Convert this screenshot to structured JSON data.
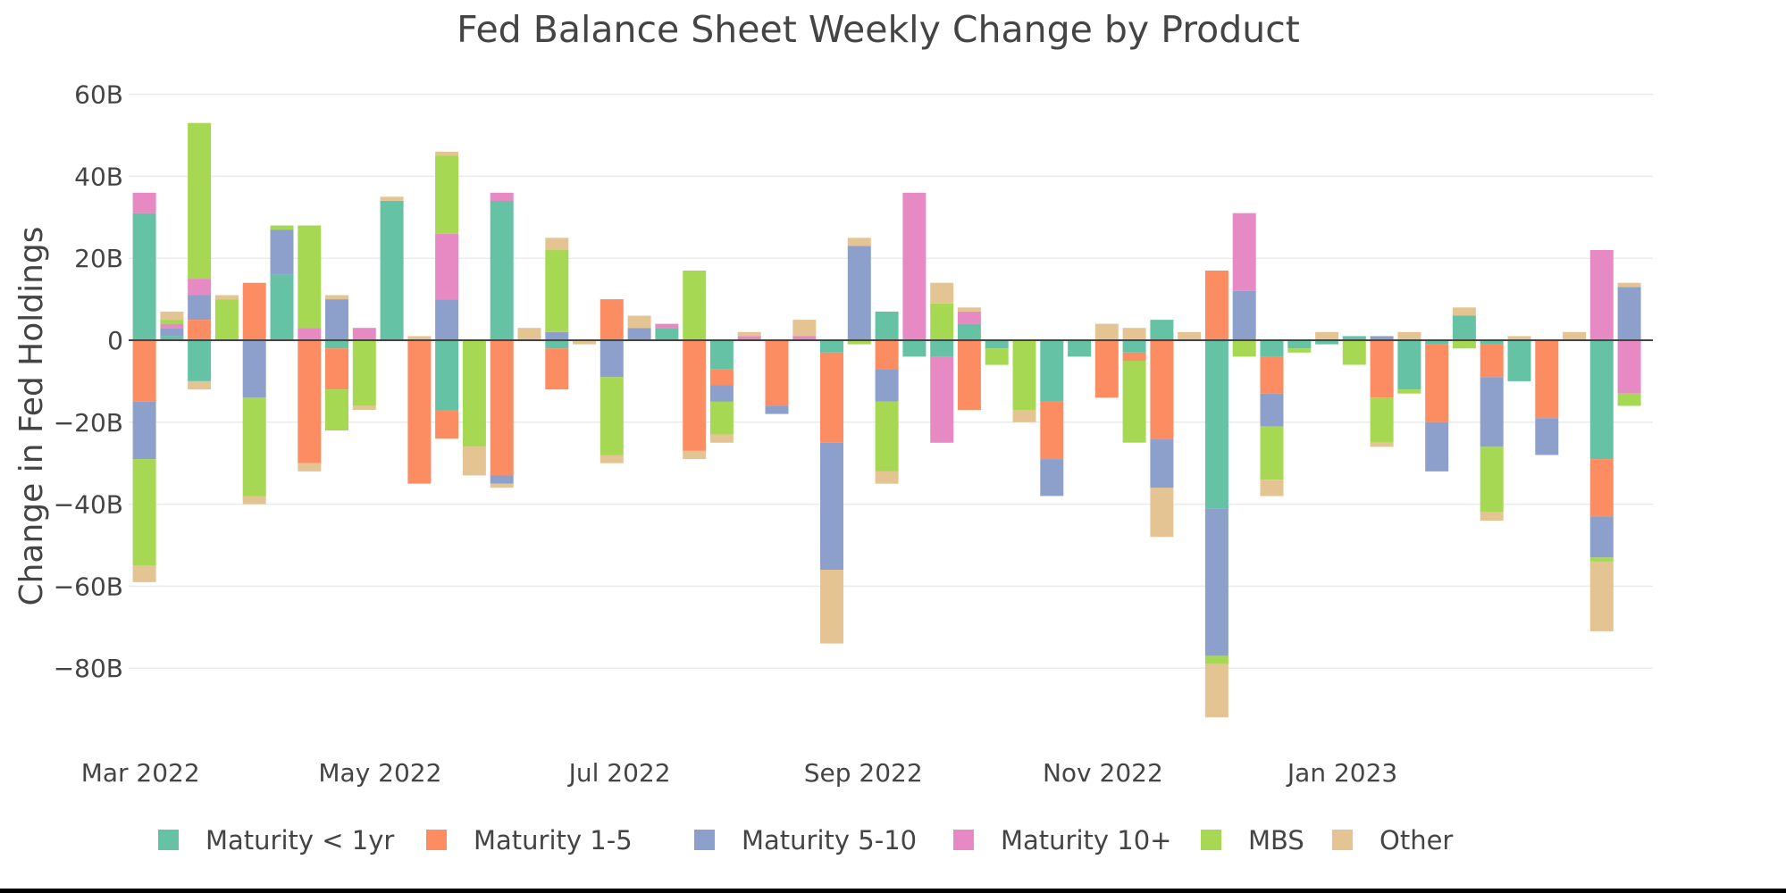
{
  "chart_data": {
    "type": "bar",
    "barmode": "relative",
    "title": "Fed Balance Sheet Weekly Change by Product",
    "ylabel": "Change in Fed Holdings",
    "xlabel": "",
    "ylim": [
      -97,
      64
    ],
    "yticks": [
      60,
      40,
      20,
      0,
      -20,
      -40,
      -60,
      -80
    ],
    "ytick_labels": [
      "60B",
      "40B",
      "20B",
      "0",
      "−20B",
      "−40B",
      "−60B",
      "−80B"
    ],
    "xlim": [
      "2022-02-26",
      "2023-03-21"
    ],
    "xticks": [
      "2022-03-01",
      "2022-05-01",
      "2022-07-01",
      "2022-09-01",
      "2022-11-01",
      "2023-01-01"
    ],
    "xtick_labels": [
      "Mar 2022",
      "May 2022",
      "Jul 2022",
      "Sep 2022",
      "Nov 2022",
      "Jan 2023"
    ],
    "grid": true,
    "legend_position": "bottom",
    "dates": [
      "2022-03-02",
      "2022-03-09",
      "2022-03-16",
      "2022-03-23",
      "2022-03-30",
      "2022-04-06",
      "2022-04-13",
      "2022-04-20",
      "2022-04-27",
      "2022-05-04",
      "2022-05-11",
      "2022-05-18",
      "2022-05-25",
      "2022-06-01",
      "2022-06-08",
      "2022-06-15",
      "2022-06-22",
      "2022-06-29",
      "2022-07-06",
      "2022-07-13",
      "2022-07-20",
      "2022-07-27",
      "2022-08-03",
      "2022-08-10",
      "2022-08-17",
      "2022-08-24",
      "2022-08-31",
      "2022-09-07",
      "2022-09-14",
      "2022-09-21",
      "2022-09-28",
      "2022-10-05",
      "2022-10-12",
      "2022-10-19",
      "2022-10-26",
      "2022-11-02",
      "2022-11-09",
      "2022-11-16",
      "2022-11-23",
      "2022-11-30",
      "2022-12-07",
      "2022-12-14",
      "2022-12-21",
      "2022-12-28",
      "2023-01-04",
      "2023-01-11",
      "2023-01-18",
      "2023-01-25",
      "2023-02-01",
      "2023-02-08",
      "2023-02-15",
      "2023-02-22",
      "2023-03-01",
      "2023-03-08",
      "2023-03-15"
    ],
    "series": [
      {
        "name": "Maturity < 1yr",
        "color": "#66c2a5",
        "values": [
          31,
          1,
          -10,
          0,
          0,
          16,
          0,
          -2,
          0,
          34,
          0,
          -17,
          0,
          34,
          0,
          -2,
          0,
          0,
          0,
          3,
          0,
          -7,
          0,
          0,
          0,
          -3,
          0,
          7,
          -4,
          -4,
          4,
          -2,
          0,
          -15,
          -4,
          0,
          -3,
          5,
          0,
          -41,
          0,
          -4,
          -2,
          -1,
          1,
          0,
          -12,
          -1,
          6,
          -1,
          -10,
          0,
          0,
          -29,
          0
        ]
      },
      {
        "name": "Maturity 1-5",
        "color": "#fc8d62",
        "values": [
          -15,
          0,
          5,
          0,
          14,
          0,
          -30,
          -10,
          0,
          0,
          -35,
          -7,
          0,
          -33,
          0,
          -10,
          0,
          10,
          0,
          0,
          -27,
          -4,
          0,
          -16,
          0,
          -22,
          0,
          -7,
          0,
          0,
          -17,
          0,
          0,
          -14,
          0,
          -14,
          -2,
          -24,
          0,
          17,
          0,
          -9,
          0,
          0,
          0,
          -14,
          0,
          -19,
          0,
          -8,
          0,
          -19,
          0,
          -14,
          0
        ]
      },
      {
        "name": "Maturity 5-10",
        "color": "#8da0cb",
        "values": [
          -14,
          2,
          6,
          0,
          -14,
          11,
          0,
          10,
          0,
          0,
          0,
          10,
          0,
          -2,
          0,
          2,
          0,
          -9,
          3,
          0,
          0,
          -4,
          0,
          -2,
          0,
          -31,
          23,
          -8,
          0,
          0,
          0,
          0,
          0,
          -9,
          0,
          0,
          0,
          -12,
          0,
          -36,
          12,
          -8,
          0,
          0,
          0,
          1,
          0,
          -12,
          0,
          -17,
          0,
          -9,
          0,
          -10,
          13
        ]
      },
      {
        "name": "Maturity 10+",
        "color": "#e78ac3",
        "values": [
          5,
          1,
          4,
          0,
          0,
          0,
          3,
          0,
          3,
          0,
          0,
          16,
          0,
          2,
          0,
          0,
          0,
          0,
          0,
          1,
          0,
          0,
          1,
          0,
          1,
          0,
          0,
          0,
          36,
          -21,
          3,
          0,
          0,
          0,
          0,
          0,
          0,
          0,
          0,
          0,
          19,
          0,
          0,
          0,
          0,
          0,
          0,
          0,
          0,
          0,
          0,
          0,
          0,
          22,
          -13
        ]
      },
      {
        "name": "MBS",
        "color": "#a6d854",
        "values": [
          -26,
          1,
          38,
          10,
          -24,
          1,
          25,
          -10,
          -16,
          0,
          0,
          19,
          -26,
          0,
          0,
          20,
          0,
          -19,
          0,
          0,
          17,
          -8,
          0,
          0,
          0,
          0,
          -1,
          -17,
          0,
          9,
          0,
          -4,
          -17,
          0,
          0,
          0,
          -20,
          0,
          0,
          -2,
          -4,
          -13,
          -1,
          0,
          -6,
          -11,
          -1,
          0,
          -2,
          -16,
          0,
          0,
          0,
          -1,
          -3
        ]
      },
      {
        "name": "Other",
        "color": "#e5c494",
        "values": [
          -4,
          2,
          -2,
          1,
          -2,
          0,
          -2,
          1,
          -1,
          1,
          1,
          1,
          -7,
          -1,
          3,
          3,
          -1,
          -2,
          3,
          0,
          -2,
          -2,
          1,
          0,
          4,
          -18,
          2,
          -3,
          0,
          5,
          1,
          0,
          -3,
          0,
          0,
          4,
          3,
          -12,
          2,
          -13,
          0,
          -4,
          0,
          2,
          0,
          -1,
          2,
          0,
          2,
          -2,
          1,
          0,
          2,
          -17,
          1
        ]
      }
    ]
  }
}
